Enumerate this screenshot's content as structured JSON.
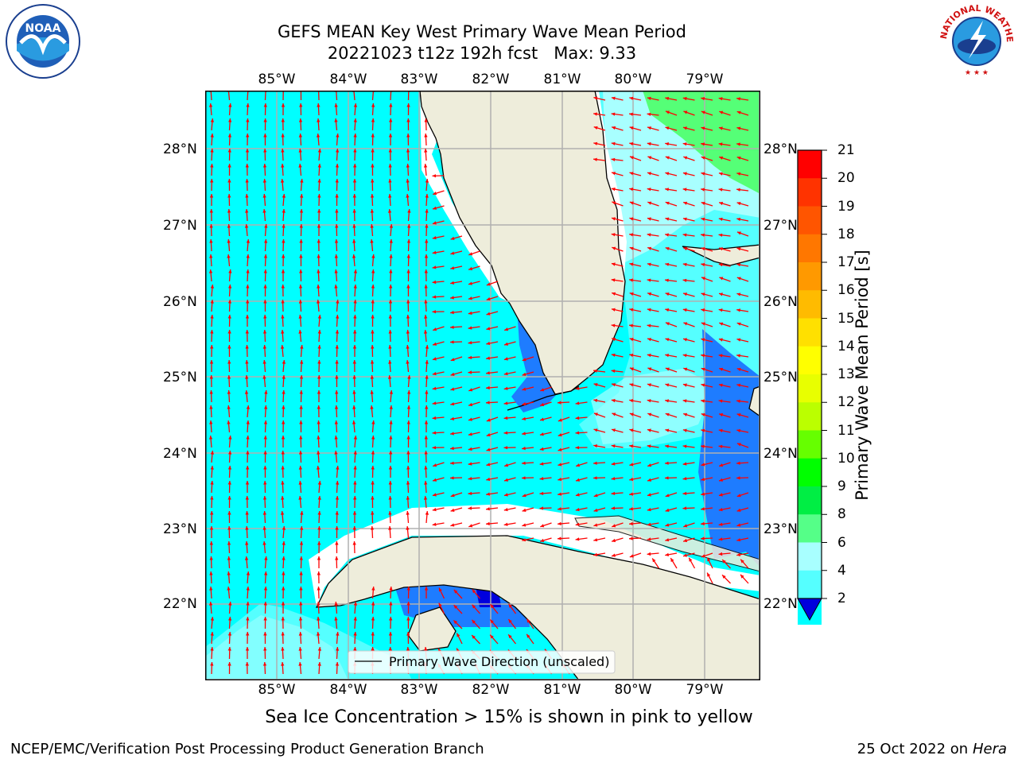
{
  "header": {
    "title_line1": "GEFS MEAN Key West Primary Wave Mean Period",
    "title_line2": "20221023 t12z 192h fcst   Max: 9.33"
  },
  "logos": {
    "left_text": "NOAA",
    "right_text": "NATIONAL WEATHER SERVICE"
  },
  "map": {
    "lon_labels": [
      "85°W",
      "84°W",
      "83°W",
      "82°W",
      "81°W",
      "80°W",
      "79°W"
    ],
    "lat_labels": [
      "28°N",
      "27°N",
      "26°N",
      "25°N",
      "24°N",
      "23°N",
      "22°N"
    ],
    "legend_label": "Primary Wave Direction (unscaled)",
    "colors": {
      "land": "#eeeddb",
      "band_2_4": "#1e7cff",
      "band_4_6": "#00ffff",
      "band_6_8": "#55ffff",
      "band_8_9": "#a8ffff",
      "band_9_10": "#55ff77",
      "band_below_2": "#0000dd",
      "arrow": "#ff0000",
      "grid": "#b0b0b0"
    }
  },
  "colorbar": {
    "label": "Primary Wave Mean Period [s]",
    "ticks": [
      "21",
      "20",
      "19",
      "18",
      "17",
      "16",
      "15",
      "14",
      "13",
      "12",
      "11",
      "10",
      "9",
      "8",
      "6",
      "4",
      "2"
    ],
    "band_colors": [
      "#ff0000",
      "#ff3300",
      "#ff5500",
      "#ff7700",
      "#ff9900",
      "#ffbb00",
      "#ffe000",
      "#ffff00",
      "#e8ff00",
      "#bbff00",
      "#66ff00",
      "#00ff00",
      "#00ee44",
      "#55ff88",
      "#a8ffff",
      "#55ffff",
      "#00ffff",
      "#1e7cff"
    ],
    "extend_color": "#0000dd"
  },
  "bottom_note": "Sea Ice Concentration > 15% is shown in pink to yellow",
  "footer": {
    "left": "NCEP/EMC/Verification Post Processing Product Generation Branch",
    "right_date": "25 Oct 2022 on ",
    "right_machine": "Hera"
  }
}
